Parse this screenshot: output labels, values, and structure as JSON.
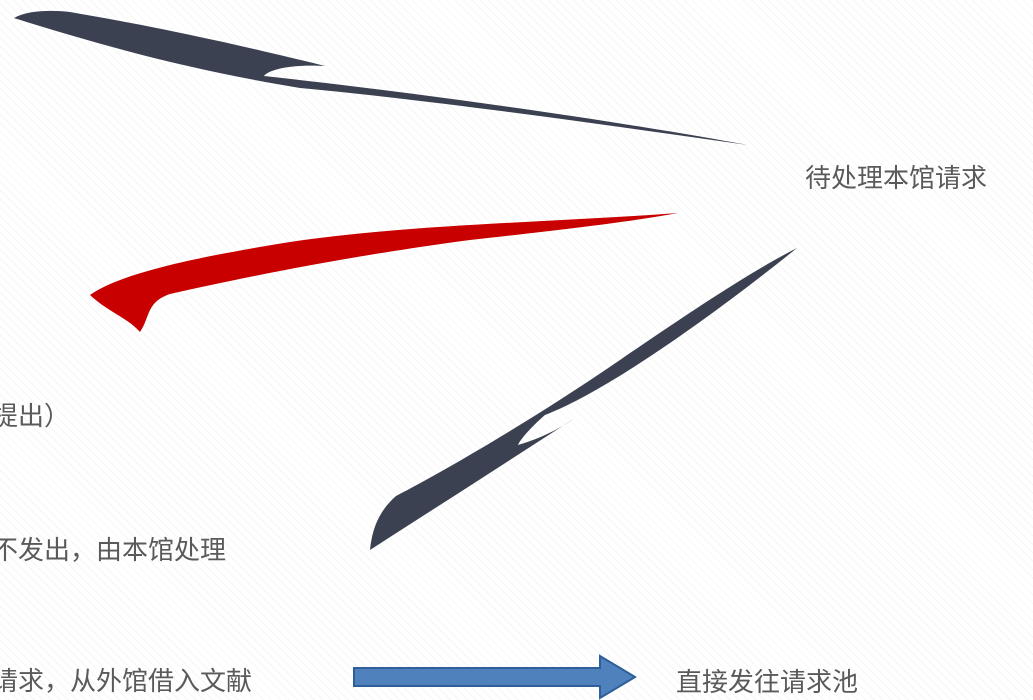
{
  "labels": {
    "top_right": "待处理本馆请求",
    "left_1": "提出）",
    "left_2": "不发出，由本馆处理",
    "left_3": "请求，从外馆借入文献",
    "bottom_right": "直接发往请求池"
  },
  "colors": {
    "stroke_dark": "#3b4150",
    "stroke_red": "#c80000",
    "arrow_fill": "#4f81bd",
    "arrow_border": "#2f5f98",
    "text": "#5a5a5a"
  },
  "icons": {
    "brush_top": "dark-brush-stroke",
    "brush_middle": "red-brush-stroke",
    "brush_right": "dark-brush-stroke",
    "arrow": "right-arrow"
  }
}
